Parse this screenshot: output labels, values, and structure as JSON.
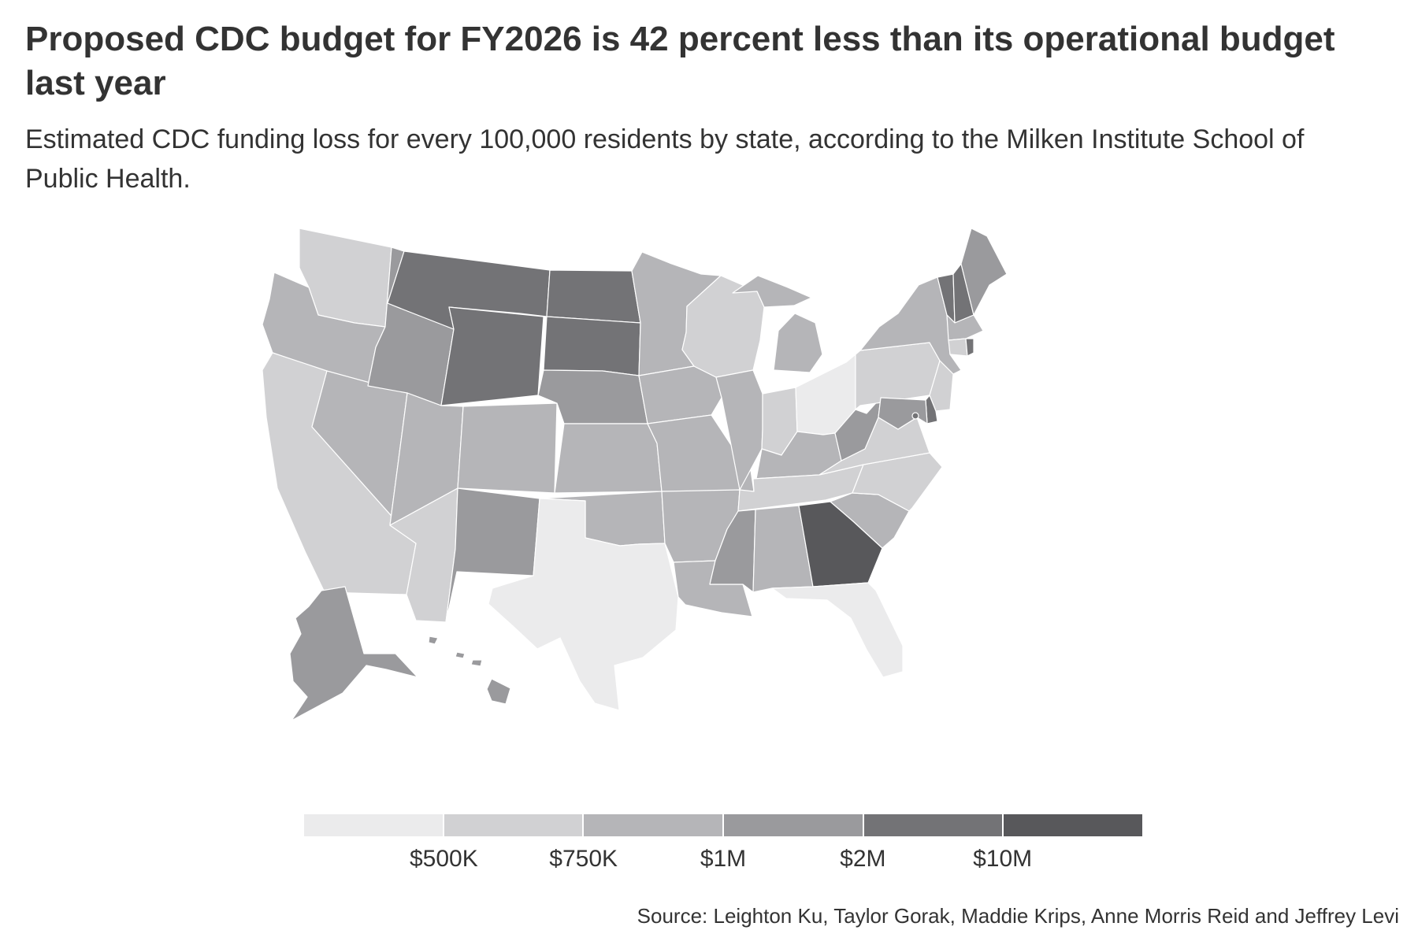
{
  "title": "Proposed CDC budget for FY2026 is 42 percent less than its operational budget last year",
  "subtitle": "Estimated CDC funding loss for every 100,000 residents by state, according to the Milken Institute School of Public Health.",
  "source": "Source: Leighton Ku, Taylor Gorak, Maddie Krips, Anne Morris Reid and Jeffrey Levi",
  "legend": {
    "labels": [
      "$500K",
      "$750K",
      "$1M",
      "$2M",
      "$10M"
    ],
    "colors": [
      "#ebebec",
      "#d1d1d3",
      "#b5b5b8",
      "#9a9a9d",
      "#737376",
      "#58585b"
    ]
  },
  "colors": {
    "text": "#333333",
    "background": "#ffffff",
    "state_border": "#ffffff"
  },
  "map_data": {
    "type": "choropleth",
    "region": "United States",
    "bins": [
      "< $500K",
      "$500K–$750K",
      "$750K–$1M",
      "$1M–$2M",
      "$2M–$10M",
      "> $10M"
    ],
    "states": {
      "WA": 1,
      "OR": 2,
      "CA": 1,
      "NV": 2,
      "ID": 3,
      "MT": 4,
      "WY": 4,
      "UT": 2,
      "AZ": 1,
      "CO": 2,
      "NM": 3,
      "ND": 4,
      "SD": 4,
      "NE": 3,
      "KS": 2,
      "OK": 2,
      "TX": 0,
      "MN": 2,
      "IA": 2,
      "MO": 2,
      "AR": 2,
      "LA": 2,
      "WI": 1,
      "IL": 2,
      "MI": 2,
      "IN": 1,
      "OH": 0,
      "KY": 2,
      "TN": 1,
      "MS": 3,
      "AL": 2,
      "GA": 5,
      "FL": 0,
      "SC": 2,
      "NC": 1,
      "VA": 1,
      "WV": 3,
      "PA": 1,
      "NY": 2,
      "NJ": 1,
      "DE": 4,
      "MD": 3,
      "DC": 4,
      "VT": 4,
      "NH": 4,
      "ME": 3,
      "MA": 2,
      "CT": 1,
      "RI": 4,
      "AK": 3,
      "HI": 3
    }
  }
}
